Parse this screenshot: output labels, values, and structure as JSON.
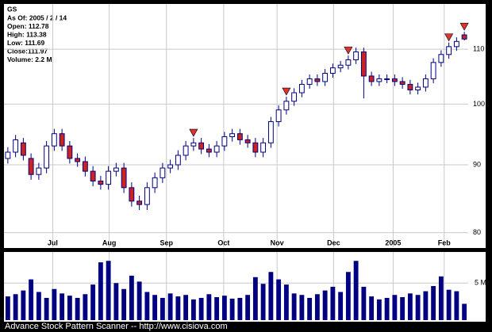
{
  "chart_data": {
    "type": "candlestick",
    "symbol": "GS",
    "info": [
      "As Of: 2005 / 2 / 14",
      "Open: 112.78",
      "High: 113.38",
      "Low: 111.69",
      "Close:111.97",
      "Volume: 2.2 M"
    ],
    "footer": "Advance Stock Pattern Scanner -- http://www.cisiova.com",
    "log_scale": true,
    "grid": true,
    "up_color": "#ffffff",
    "down_color": "#cc2222",
    "wick_color": "#000080",
    "volume_color": "#000080",
    "signal_color": "#dd3333",
    "xlim": [
      0,
      60
    ],
    "xticks": [
      {
        "value": 6.3,
        "label": "Jul"
      },
      {
        "value": 13.6,
        "label": "Aug"
      },
      {
        "value": 21.0,
        "label": "Sep"
      },
      {
        "value": 28.4,
        "label": "Oct"
      },
      {
        "value": 35.3,
        "label": "Nov"
      },
      {
        "value": 42.6,
        "label": "Dec"
      },
      {
        "value": 50.3,
        "label": "2005"
      },
      {
        "value": 56.9,
        "label": "Feb"
      }
    ],
    "ylim": [
      78,
      119
    ],
    "yticks": [
      80,
      90,
      100,
      110
    ],
    "open": [
      91.0,
      92.0,
      93.5,
      91.0,
      88.5,
      89.5,
      93.0,
      95.0,
      93.0,
      91.0,
      90.5,
      89.0,
      87.5,
      87.0,
      89.0,
      89.5,
      86.5,
      84.5,
      84.0,
      86.5,
      88.0,
      89.5,
      90.0,
      91.5,
      93.0,
      93.5,
      92.5,
      92.0,
      93.0,
      94.5,
      95.0,
      94.0,
      93.5,
      92.0,
      93.5,
      97.0,
      99.0,
      100.5,
      102.0,
      103.5,
      104.5,
      104.0,
      105.5,
      106.5,
      107.0,
      108.0,
      109.5,
      105.0,
      104.0,
      104.5,
      104.5,
      104.0,
      103.5,
      102.5,
      103.0,
      104.5,
      107.5,
      109.0,
      110.5,
      112.78
    ],
    "high": [
      92.8,
      94.8,
      94.3,
      91.8,
      90.3,
      93.8,
      95.8,
      95.8,
      93.8,
      91.8,
      91.3,
      89.8,
      88.3,
      89.8,
      90.3,
      90.3,
      87.3,
      85.3,
      87.3,
      88.8,
      90.3,
      90.8,
      92.3,
      93.8,
      94.3,
      94.3,
      93.3,
      93.8,
      95.3,
      95.8,
      95.8,
      94.8,
      94.3,
      94.3,
      97.8,
      99.8,
      101.3,
      102.8,
      104.3,
      105.3,
      105.3,
      106.3,
      107.3,
      107.8,
      108.8,
      110.3,
      110.3,
      105.8,
      105.3,
      105.3,
      105.3,
      104.8,
      104.3,
      103.8,
      105.3,
      108.3,
      109.8,
      111.3,
      112.3,
      113.38
    ],
    "low": [
      90.2,
      91.2,
      90.7,
      87.7,
      87.7,
      88.7,
      92.2,
      92.2,
      90.2,
      89.7,
      88.2,
      86.7,
      86.2,
      86.2,
      88.2,
      85.7,
      83.7,
      83.2,
      83.2,
      85.7,
      87.2,
      88.7,
      89.2,
      90.7,
      92.2,
      91.7,
      91.2,
      91.2,
      92.2,
      93.7,
      93.2,
      92.7,
      91.2,
      91.2,
      92.7,
      96.2,
      98.2,
      99.7,
      101.2,
      102.7,
      103.2,
      103.2,
      104.7,
      105.7,
      106.2,
      107.2,
      101.0,
      103.2,
      103.2,
      103.7,
      103.2,
      102.7,
      101.7,
      101.7,
      102.2,
      103.7,
      106.7,
      108.2,
      109.7,
      111.69
    ],
    "close": [
      92.0,
      94.0,
      91.5,
      88.5,
      89.5,
      93.0,
      95.0,
      93.0,
      91.0,
      90.5,
      89.0,
      87.5,
      87.0,
      89.0,
      89.5,
      86.5,
      84.5,
      84.0,
      86.5,
      88.0,
      89.5,
      90.0,
      91.5,
      93.0,
      93.5,
      92.5,
      92.0,
      93.0,
      94.5,
      95.0,
      94.0,
      93.5,
      92.0,
      93.5,
      97.0,
      99.0,
      100.5,
      102.0,
      103.5,
      104.5,
      104.0,
      105.5,
      106.5,
      107.0,
      108.0,
      109.5,
      105.0,
      104.0,
      104.5,
      104.5,
      104.0,
      103.5,
      102.5,
      103.0,
      104.5,
      107.5,
      109.0,
      110.5,
      111.5,
      111.97
    ],
    "signals": [
      24,
      36,
      44,
      57,
      59
    ],
    "volume": [
      3.2,
      3.5,
      4.0,
      5.5,
      3.8,
      3.0,
      4.2,
      3.6,
      3.3,
      3.0,
      3.5,
      4.8,
      7.8,
      8.0,
      5.0,
      4.2,
      6.0,
      5.2,
      3.8,
      3.4,
      3.0,
      3.6,
      3.2,
      3.4,
      2.8,
      3.0,
      3.5,
      3.1,
      3.3,
      2.9,
      3.0,
      3.4,
      5.8,
      4.9,
      6.5,
      5.5,
      4.8,
      3.6,
      3.4,
      3.0,
      3.5,
      4.0,
      4.5,
      3.8,
      6.5,
      8.0,
      4.5,
      3.2,
      2.8,
      3.0,
      3.4,
      3.1,
      3.6,
      3.4,
      3.9,
      4.6,
      5.9,
      4.1,
      3.9,
      2.2
    ],
    "volume_ylim": [
      0,
      9.2
    ],
    "volume_yticks": [
      {
        "value": 5,
        "label": "5 M"
      }
    ]
  }
}
